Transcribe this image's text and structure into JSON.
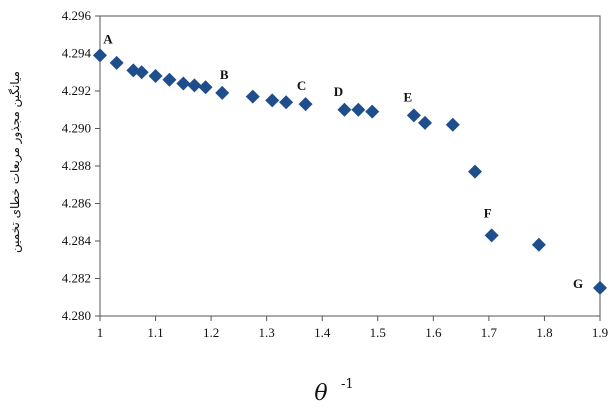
{
  "chart_data": {
    "type": "scatter",
    "title": "",
    "xlabel": "θ",
    "xlabel_superscript": "-1",
    "ylabel": "میانگین مجذور مربعات خطای تخمین",
    "xlim": [
      1,
      1.9
    ],
    "ylim": [
      4.28,
      4.296
    ],
    "x_ticks": [
      1,
      1.1,
      1.2,
      1.3,
      1.4,
      1.5,
      1.6,
      1.7,
      1.8,
      1.9
    ],
    "x_tick_labels": [
      "1",
      "1.1",
      "1.2",
      "1.3",
      "1.4",
      "1.5",
      "1.6",
      "1.7",
      "1.8",
      "1.9"
    ],
    "y_ticks": [
      4.28,
      4.282,
      4.284,
      4.286,
      4.288,
      4.29,
      4.292,
      4.294,
      4.296
    ],
    "y_tick_labels": [
      "4.280",
      "4.282",
      "4.284",
      "4.286",
      "4.288",
      "4.290",
      "4.292",
      "4.294",
      "4.296"
    ],
    "grid": false,
    "marker_color": "#1f4e8c",
    "series": [
      {
        "x": [
          1.0,
          1.03,
          1.06,
          1.075,
          1.1,
          1.125,
          1.15,
          1.17,
          1.19,
          1.22,
          1.275,
          1.31,
          1.335,
          1.37,
          1.44,
          1.465,
          1.49,
          1.565,
          1.585,
          1.635,
          1.675,
          1.705,
          1.79,
          1.9
        ],
        "y": [
          4.2939,
          4.2935,
          4.2931,
          4.293,
          4.2928,
          4.2926,
          4.2924,
          4.2923,
          4.2922,
          4.2919,
          4.2917,
          4.2915,
          4.2914,
          4.2913,
          4.291,
          4.291,
          4.2909,
          4.2907,
          4.2903,
          4.2902,
          4.2877,
          4.2843,
          4.2838,
          4.2815
        ]
      }
    ],
    "annotations": [
      {
        "text": "A",
        "x": 1.0,
        "y": 4.2939
      },
      {
        "text": "B",
        "x": 1.22,
        "y": 4.2919
      },
      {
        "text": "C",
        "x": 1.37,
        "y": 4.2913
      },
      {
        "text": "D",
        "x": 1.44,
        "y": 4.291
      },
      {
        "text": "E",
        "x": 1.565,
        "y": 4.2907
      },
      {
        "text": "F",
        "x": 1.705,
        "y": 4.2843
      },
      {
        "text": "G",
        "x": 1.9,
        "y": 4.2815
      }
    ]
  }
}
